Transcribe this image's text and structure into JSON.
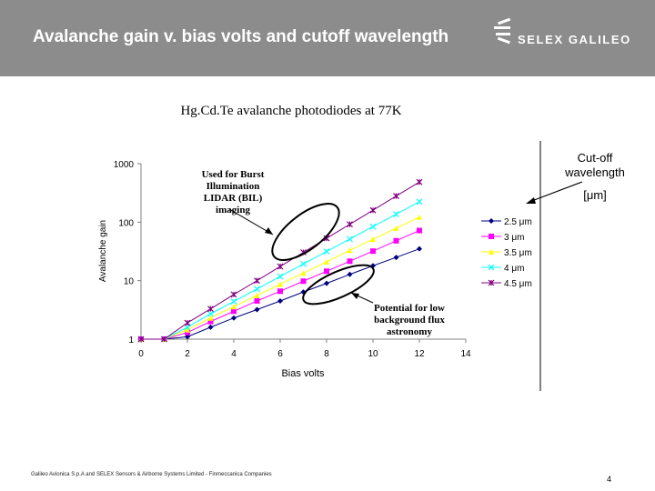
{
  "header": {
    "title": "Avalanche gain v. bias volts and cutoff wavelength",
    "logo_text": "SELEX GALILEO",
    "background": "#8c8c8c"
  },
  "subtitle": "Hg.Cd.Te avalanche photodiodes at 77K",
  "annotations": {
    "burst": "Used for Burst Illumination LIDAR (BIL) imaging",
    "astronomy": "Potential for low background flux astronomy",
    "cutoff": "Cut-off wavelength",
    "unit": "[μm]"
  },
  "footer": {
    "text": "Galileo Avionica S.p.A and SELEX Sensors & Airborne Systems Limited - Finmeccanica Companies",
    "page": "4"
  },
  "chart_data": {
    "type": "line",
    "title": "",
    "xlabel": "Bias volts",
    "ylabel": "Avalanche gain",
    "xlim": [
      0,
      14
    ],
    "ylim": [
      1,
      1000
    ],
    "yscale": "log",
    "xticks": [
      "0",
      "2",
      "4",
      "6",
      "8",
      "10",
      "12",
      "14"
    ],
    "yticks": [
      "1",
      "10",
      "100",
      "1000"
    ],
    "legend_position": "right",
    "series": [
      {
        "name": "2.5 μm",
        "color": "#000080",
        "marker": "diamond",
        "x": [
          0,
          1,
          2,
          3,
          4,
          5,
          6,
          7,
          8,
          9,
          10,
          11,
          12
        ],
        "y": [
          1,
          1,
          1.1,
          1.6,
          2.3,
          3.2,
          4.5,
          6.4,
          9,
          12.8,
          18,
          25,
          35
        ]
      },
      {
        "name": "3 μm",
        "color": "#ff00ff",
        "marker": "square",
        "x": [
          0,
          1,
          2,
          3,
          4,
          5,
          6,
          7,
          8,
          9,
          10,
          11,
          12
        ],
        "y": [
          1,
          1,
          1.3,
          2,
          3,
          4.5,
          6.6,
          9.8,
          14.5,
          21.5,
          32,
          48,
          72
        ]
      },
      {
        "name": "3.5 μm",
        "color": "#ffff00",
        "marker": "triangle",
        "x": [
          0,
          1,
          2,
          3,
          4,
          5,
          6,
          7,
          8,
          9,
          10,
          11,
          12
        ],
        "y": [
          1,
          1,
          1.45,
          2.3,
          3.6,
          5.6,
          8.7,
          13.5,
          21,
          33,
          51,
          79,
          122
        ]
      },
      {
        "name": "4 μm",
        "color": "#00ffff",
        "marker": "x",
        "x": [
          0,
          1,
          2,
          3,
          4,
          5,
          6,
          7,
          8,
          9,
          10,
          11,
          12
        ],
        "y": [
          1,
          1,
          1.6,
          2.7,
          4.4,
          7.2,
          11.8,
          19.3,
          31.5,
          51.5,
          84,
          137,
          224
        ]
      },
      {
        "name": "4.5 μm",
        "color": "#800080",
        "marker": "star",
        "x": [
          0,
          1,
          2,
          3,
          4,
          5,
          6,
          7,
          8,
          9,
          10,
          11,
          12
        ],
        "y": [
          1,
          1,
          1.9,
          3.3,
          5.8,
          10,
          17.5,
          30.5,
          53,
          92,
          160,
          280,
          485
        ]
      }
    ]
  }
}
